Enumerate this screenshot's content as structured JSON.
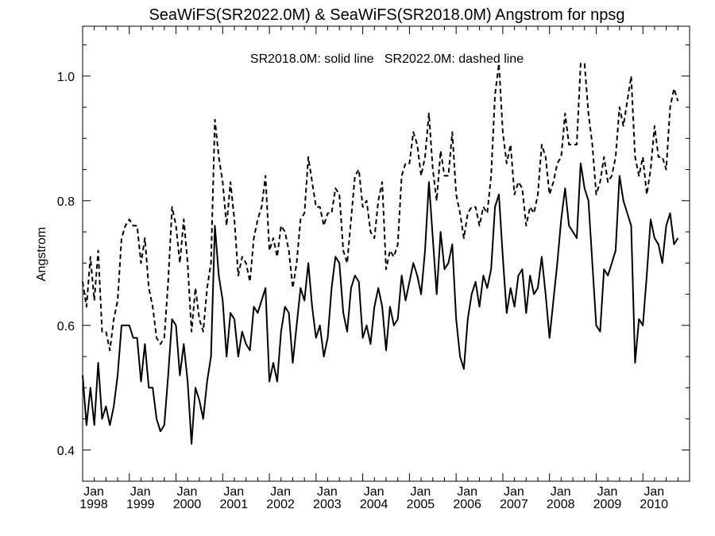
{
  "chart_data": {
    "type": "line",
    "title": "SeaWiFS(SR2022.0M) & SeaWiFS(SR2018.0M)  Angstrom for npsg",
    "annotation": "SR2018.0M: solid line   SR2022.0M: dashed line",
    "xlabel": "",
    "ylabel": "Angstrom",
    "xlim": [
      "1998-01",
      "2010-12"
    ],
    "ylim": [
      0.35,
      1.08
    ],
    "y_ticks": [
      0.4,
      0.6,
      0.8,
      1.0
    ],
    "y_tick_labels": [
      "0.4",
      "0.6",
      "0.8",
      "1.0"
    ],
    "x_tick_labels": [
      {
        "month": "Jan",
        "year": "1998"
      },
      {
        "month": "Jan",
        "year": "1999"
      },
      {
        "month": "Jan",
        "year": "2000"
      },
      {
        "month": "Jan",
        "year": "2001"
      },
      {
        "month": "Jan",
        "year": "2002"
      },
      {
        "month": "Jan",
        "year": "2003"
      },
      {
        "month": "Jan",
        "year": "2004"
      },
      {
        "month": "Jan",
        "year": "2005"
      },
      {
        "month": "Jan",
        "year": "2006"
      },
      {
        "month": "Jan",
        "year": "2007"
      },
      {
        "month": "Jan",
        "year": "2008"
      },
      {
        "month": "Jan",
        "year": "2009"
      },
      {
        "month": "Jan",
        "year": "2010"
      }
    ],
    "grid": false,
    "x_start": "1998-01",
    "x_step": "1 month",
    "series": [
      {
        "name": "SR2018.0M",
        "style": "solid",
        "values": [
          0.52,
          0.44,
          0.5,
          0.44,
          0.54,
          0.45,
          0.47,
          0.44,
          0.47,
          0.52,
          0.6,
          0.6,
          0.6,
          0.58,
          0.58,
          0.51,
          0.57,
          0.5,
          0.5,
          0.45,
          0.43,
          0.44,
          0.52,
          0.61,
          0.6,
          0.52,
          0.57,
          0.51,
          0.41,
          0.5,
          0.48,
          0.45,
          0.51,
          0.55,
          0.76,
          0.68,
          0.64,
          0.55,
          0.62,
          0.61,
          0.55,
          0.59,
          0.57,
          0.56,
          0.63,
          0.62,
          0.64,
          0.66,
          0.51,
          0.54,
          0.51,
          0.59,
          0.63,
          0.62,
          0.54,
          0.6,
          0.66,
          0.64,
          0.7,
          0.63,
          0.58,
          0.6,
          0.55,
          0.58,
          0.66,
          0.71,
          0.7,
          0.62,
          0.59,
          0.66,
          0.68,
          0.67,
          0.58,
          0.6,
          0.57,
          0.63,
          0.66,
          0.63,
          0.56,
          0.63,
          0.6,
          0.61,
          0.68,
          0.64,
          0.67,
          0.7,
          0.68,
          0.65,
          0.72,
          0.83,
          0.74,
          0.65,
          0.75,
          0.69,
          0.7,
          0.73,
          0.61,
          0.55,
          0.53,
          0.61,
          0.65,
          0.67,
          0.63,
          0.68,
          0.66,
          0.69,
          0.79,
          0.81,
          0.71,
          0.62,
          0.66,
          0.63,
          0.68,
          0.69,
          0.62,
          0.68,
          0.65,
          0.66,
          0.71,
          0.65,
          0.58,
          0.64,
          0.7,
          0.77,
          0.82,
          0.76,
          0.75,
          0.74,
          0.86,
          0.82,
          0.8,
          0.7,
          0.6,
          0.59,
          0.69,
          0.68,
          0.7,
          0.72,
          0.84,
          0.8,
          0.78,
          0.76,
          0.54,
          0.61,
          0.6,
          0.68,
          0.77,
          0.74,
          0.73,
          0.7,
          0.76,
          0.78,
          0.73,
          0.74
        ]
      },
      {
        "name": "SR2022.0M",
        "style": "dashed",
        "values": [
          0.67,
          0.63,
          0.71,
          0.64,
          0.72,
          0.59,
          0.59,
          0.56,
          0.61,
          0.64,
          0.74,
          0.76,
          0.77,
          0.76,
          0.76,
          0.7,
          0.74,
          0.66,
          0.63,
          0.58,
          0.57,
          0.58,
          0.67,
          0.79,
          0.76,
          0.7,
          0.77,
          0.7,
          0.59,
          0.66,
          0.61,
          0.59,
          0.66,
          0.7,
          0.93,
          0.87,
          0.83,
          0.76,
          0.83,
          0.77,
          0.68,
          0.71,
          0.7,
          0.67,
          0.74,
          0.77,
          0.79,
          0.84,
          0.72,
          0.74,
          0.71,
          0.76,
          0.75,
          0.72,
          0.66,
          0.7,
          0.77,
          0.78,
          0.87,
          0.83,
          0.79,
          0.79,
          0.76,
          0.78,
          0.78,
          0.82,
          0.81,
          0.72,
          0.7,
          0.77,
          0.84,
          0.85,
          0.79,
          0.8,
          0.75,
          0.74,
          0.8,
          0.83,
          0.69,
          0.72,
          0.71,
          0.73,
          0.84,
          0.86,
          0.86,
          0.91,
          0.89,
          0.84,
          0.87,
          0.94,
          0.85,
          0.8,
          0.88,
          0.84,
          0.84,
          0.91,
          0.81,
          0.78,
          0.74,
          0.78,
          0.79,
          0.79,
          0.76,
          0.79,
          0.78,
          0.84,
          0.97,
          1.02,
          0.91,
          0.86,
          0.89,
          0.81,
          0.83,
          0.82,
          0.76,
          0.79,
          0.78,
          0.81,
          0.89,
          0.87,
          0.81,
          0.83,
          0.86,
          0.87,
          0.94,
          0.89,
          0.89,
          0.89,
          1.02,
          1.02,
          0.94,
          0.89,
          0.81,
          0.83,
          0.87,
          0.83,
          0.84,
          0.87,
          0.95,
          0.92,
          0.96,
          1.0,
          0.87,
          0.84,
          0.87,
          0.81,
          0.85,
          0.92,
          0.87,
          0.87,
          0.85,
          0.95,
          0.98,
          0.96
        ]
      }
    ]
  }
}
